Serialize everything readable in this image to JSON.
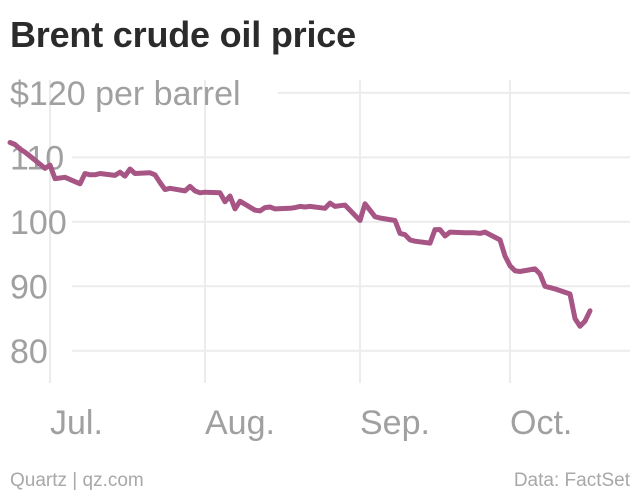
{
  "title": "Brent crude oil price",
  "footer": {
    "credit": "Quartz | qz.com",
    "source": "Data: FactSet"
  },
  "colors": {
    "line": "#a75585",
    "grid": "#ececec",
    "text": "#a0a0a0",
    "title": "#2b2b2b"
  },
  "chart_data": {
    "type": "line",
    "title": "Brent crude oil price",
    "ylabel": "",
    "xlabel": "",
    "y_tick_labels": [
      {
        "value": 120,
        "label": "$120 per barrel"
      },
      {
        "value": 110,
        "label": "110"
      },
      {
        "value": 100,
        "label": "100"
      },
      {
        "value": 90,
        "label": "90"
      },
      {
        "value": 80,
        "label": "80"
      }
    ],
    "x_tick_labels": [
      {
        "date": "2014-07-01",
        "label": "Jul."
      },
      {
        "date": "2014-08-01",
        "label": "Aug."
      },
      {
        "date": "2014-09-01",
        "label": "Sep."
      },
      {
        "date": "2014-10-01",
        "label": "Oct."
      }
    ],
    "xlim": [
      "2014-06-23",
      "2014-10-25"
    ],
    "ylim": [
      75,
      122
    ],
    "grid": true,
    "series": [
      {
        "dates": [
          "2014-06-23",
          "2014-06-24",
          "2014-06-25",
          "2014-06-26",
          "2014-06-27",
          "2014-06-30",
          "2014-07-01",
          "2014-07-02",
          "2014-07-03",
          "2014-07-04",
          "2014-07-07",
          "2014-07-08",
          "2014-07-09",
          "2014-07-10",
          "2014-07-11",
          "2014-07-14",
          "2014-07-15",
          "2014-07-16",
          "2014-07-17",
          "2014-07-18",
          "2014-07-21",
          "2014-07-22",
          "2014-07-23",
          "2014-07-24",
          "2014-07-25",
          "2014-07-28",
          "2014-07-29",
          "2014-07-30",
          "2014-07-31",
          "2014-08-01",
          "2014-08-04",
          "2014-08-05",
          "2014-08-06",
          "2014-08-07",
          "2014-08-08",
          "2014-08-11",
          "2014-08-12",
          "2014-08-13",
          "2014-08-14",
          "2014-08-15",
          "2014-08-18",
          "2014-08-19",
          "2014-08-20",
          "2014-08-21",
          "2014-08-22",
          "2014-08-25",
          "2014-08-26",
          "2014-08-27",
          "2014-08-28",
          "2014-08-29",
          "2014-09-01",
          "2014-09-02",
          "2014-09-03",
          "2014-09-04",
          "2014-09-05",
          "2014-09-08",
          "2014-09-09",
          "2014-09-10",
          "2014-09-11",
          "2014-09-12",
          "2014-09-15",
          "2014-09-16",
          "2014-09-17",
          "2014-09-18",
          "2014-09-19",
          "2014-09-22",
          "2014-09-23",
          "2014-09-24",
          "2014-09-25",
          "2014-09-26",
          "2014-09-29",
          "2014-09-30",
          "2014-10-01",
          "2014-10-02",
          "2014-10-03",
          "2014-10-06",
          "2014-10-07",
          "2014-10-08",
          "2014-10-09",
          "2014-10-10",
          "2014-10-13",
          "2014-10-14",
          "2014-10-15",
          "2014-10-16",
          "2014-10-17"
        ],
        "values": [
          112.3,
          112.0,
          111.3,
          110.8,
          110.2,
          108.3,
          108.8,
          106.7,
          106.8,
          106.9,
          105.9,
          107.5,
          107.3,
          107.3,
          107.5,
          107.2,
          107.7,
          107.1,
          108.2,
          107.5,
          107.6,
          107.3,
          106.1,
          105.0,
          105.2,
          104.8,
          105.5,
          104.8,
          104.5,
          104.6,
          104.5,
          103.1,
          104.0,
          102.0,
          103.2,
          101.8,
          101.7,
          102.2,
          102.3,
          102.0,
          102.1,
          102.2,
          102.4,
          102.3,
          102.4,
          102.1,
          102.9,
          102.4,
          102.5,
          102.6,
          100.2,
          102.8,
          101.8,
          100.8,
          100.6,
          100.2,
          98.2,
          98.0,
          97.2,
          97.0,
          96.7,
          98.8,
          98.8,
          97.8,
          98.4,
          98.3,
          98.3,
          98.3,
          98.2,
          98.4,
          97.2,
          94.7,
          93.2,
          92.4,
          92.3,
          92.7,
          91.9,
          90.0,
          89.8,
          89.6,
          88.8,
          85.0,
          83.8,
          84.6,
          86.2
        ]
      }
    ]
  }
}
